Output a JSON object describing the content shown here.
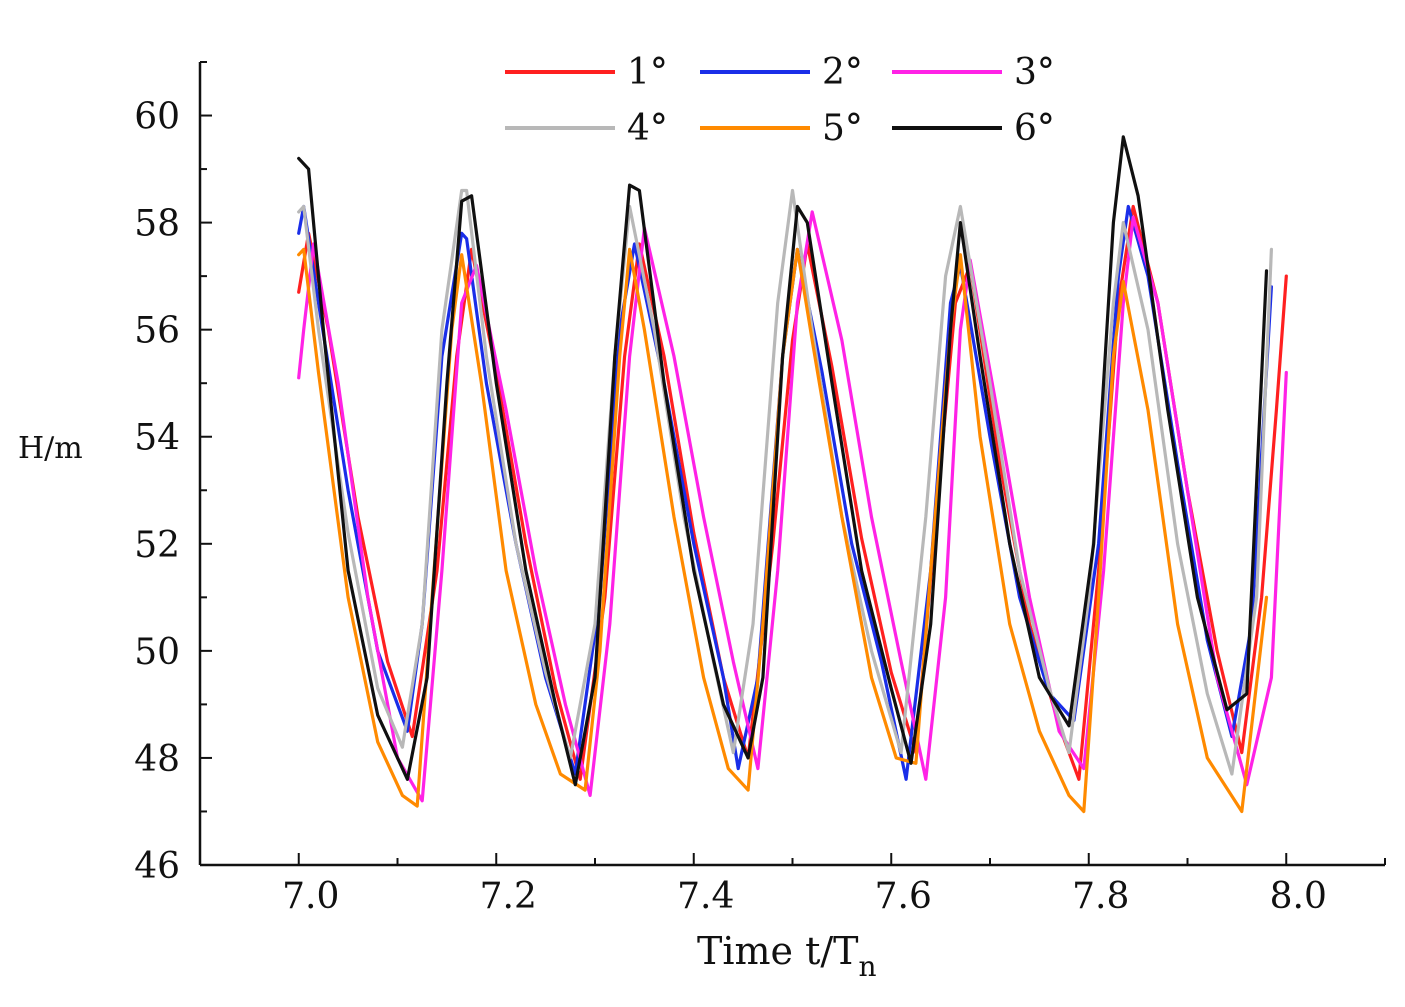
{
  "chart_data": {
    "type": "line",
    "title": "",
    "xlabel": "Time t/T",
    "xlabel_subscript": "n",
    "ylabel": "H/m",
    "xlim": [
      6.9,
      8.1
    ],
    "ylim": [
      46,
      61
    ],
    "xticks": [
      7.0,
      7.2,
      7.4,
      7.6,
      7.8,
      8.0
    ],
    "xtick_labels": [
      "7.0",
      "7.2",
      "7.4",
      "7.6",
      "7.8",
      "8.0"
    ],
    "yticks": [
      46,
      48,
      50,
      52,
      54,
      56,
      58,
      60
    ],
    "ytick_labels": [
      "46",
      "48",
      "50",
      "52",
      "54",
      "56",
      "58",
      "60"
    ],
    "legend_position": "top",
    "series": [
      {
        "name": "1°",
        "color": "#ff2020",
        "x": [
          7.0,
          7.01,
          7.03,
          7.06,
          7.09,
          7.115,
          7.14,
          7.16,
          7.175,
          7.2,
          7.23,
          7.26,
          7.285,
          7.31,
          7.33,
          7.345,
          7.37,
          7.4,
          7.43,
          7.455,
          7.48,
          7.5,
          7.515,
          7.54,
          7.57,
          7.6,
          7.625,
          7.645,
          7.665,
          7.68,
          7.71,
          7.74,
          7.77,
          7.79,
          7.81,
          7.83,
          7.845,
          7.87,
          7.9,
          7.93,
          7.955,
          7.975,
          7.99,
          8.0
        ],
        "y": [
          56.7,
          57.8,
          56.0,
          52.5,
          49.8,
          48.4,
          51.5,
          55.5,
          57.5,
          55.2,
          52.0,
          49.3,
          47.6,
          51.0,
          55.5,
          57.6,
          55.5,
          52.2,
          49.5,
          48.0,
          52.0,
          55.8,
          57.6,
          55.3,
          52.1,
          49.6,
          48.1,
          52.5,
          56.5,
          57.2,
          53.5,
          50.5,
          48.6,
          47.6,
          51.5,
          56.5,
          58.3,
          56.5,
          53.0,
          50.0,
          48.1,
          51.0,
          54.5,
          57.0
        ]
      },
      {
        "name": "2°",
        "color": "#1a2ee8",
        "x": [
          7.0,
          7.005,
          7.02,
          7.05,
          7.08,
          7.11,
          7.125,
          7.145,
          7.165,
          7.17,
          7.19,
          7.22,
          7.25,
          7.28,
          7.305,
          7.325,
          7.34,
          7.37,
          7.4,
          7.43,
          7.445,
          7.465,
          7.49,
          7.505,
          7.53,
          7.56,
          7.59,
          7.615,
          7.64,
          7.66,
          7.67,
          7.7,
          7.73,
          7.76,
          7.785,
          7.81,
          7.83,
          7.84,
          7.86,
          7.89,
          7.92,
          7.945,
          7.965,
          7.985
        ],
        "y": [
          57.8,
          58.3,
          56.5,
          53.0,
          50.0,
          48.5,
          50.5,
          55.5,
          57.8,
          57.7,
          55.0,
          52.0,
          49.5,
          47.7,
          51.0,
          56.0,
          57.6,
          55.0,
          52.0,
          49.5,
          47.8,
          49.5,
          55.5,
          57.5,
          55.2,
          52.0,
          49.8,
          47.6,
          51.5,
          56.5,
          57.2,
          54.0,
          51.0,
          49.2,
          48.7,
          52.0,
          57.0,
          58.3,
          57.0,
          53.5,
          50.2,
          48.4,
          50.5,
          56.8
        ]
      },
      {
        "name": "3°",
        "color": "#ff22e6",
        "x": [
          7.0,
          7.005,
          7.015,
          7.04,
          7.07,
          7.1,
          7.125,
          7.145,
          7.165,
          7.18,
          7.21,
          7.24,
          7.27,
          7.295,
          7.315,
          7.335,
          7.35,
          7.38,
          7.41,
          7.44,
          7.465,
          7.485,
          7.505,
          7.52,
          7.55,
          7.58,
          7.61,
          7.635,
          7.655,
          7.67,
          7.68,
          7.71,
          7.74,
          7.77,
          7.795,
          7.815,
          7.835,
          7.845,
          7.87,
          7.9,
          7.93,
          7.96,
          7.985,
          8.0
        ],
        "y": [
          55.1,
          56.0,
          57.6,
          55.0,
          51.0,
          48.0,
          47.2,
          51.5,
          56.5,
          57.2,
          54.5,
          51.5,
          49.0,
          47.3,
          50.5,
          55.5,
          57.9,
          55.5,
          52.5,
          49.8,
          47.8,
          51.5,
          56.5,
          58.2,
          55.8,
          52.5,
          49.8,
          47.6,
          51.0,
          56.0,
          57.3,
          54.2,
          51.0,
          48.5,
          47.8,
          51.5,
          56.5,
          58.1,
          56.5,
          53.0,
          49.5,
          47.5,
          49.5,
          55.2
        ]
      },
      {
        "name": "4°",
        "color": "#b8b8b8",
        "x": [
          7.0,
          7.005,
          7.02,
          7.05,
          7.08,
          7.105,
          7.125,
          7.145,
          7.165,
          7.17,
          7.19,
          7.22,
          7.25,
          7.275,
          7.3,
          7.32,
          7.335,
          7.36,
          7.39,
          7.42,
          7.44,
          7.46,
          7.485,
          7.5,
          7.52,
          7.55,
          7.58,
          7.61,
          7.635,
          7.655,
          7.67,
          7.7,
          7.73,
          7.76,
          7.78,
          7.8,
          7.825,
          7.835,
          7.86,
          7.89,
          7.92,
          7.945,
          7.97,
          7.985
        ],
        "y": [
          58.2,
          58.3,
          56.0,
          52.2,
          49.3,
          48.2,
          50.5,
          56.0,
          58.6,
          58.6,
          55.5,
          52.0,
          49.6,
          48.0,
          50.5,
          55.5,
          58.3,
          56.0,
          52.5,
          49.8,
          48.1,
          50.5,
          56.5,
          58.6,
          56.0,
          52.5,
          50.0,
          48.1,
          52.5,
          57.0,
          58.3,
          55.0,
          51.5,
          49.3,
          48.1,
          51.0,
          56.5,
          58.0,
          56.0,
          52.0,
          49.2,
          47.7,
          51.0,
          57.5
        ]
      },
      {
        "name": "5°",
        "color": "#ff8a00",
        "x": [
          7.0,
          7.005,
          7.02,
          7.05,
          7.08,
          7.105,
          7.12,
          7.135,
          7.155,
          7.165,
          7.185,
          7.21,
          7.24,
          7.265,
          7.29,
          7.305,
          7.325,
          7.335,
          7.35,
          7.38,
          7.41,
          7.435,
          7.455,
          7.47,
          7.49,
          7.505,
          7.52,
          7.55,
          7.58,
          7.605,
          7.625,
          7.64,
          7.66,
          7.67,
          7.69,
          7.72,
          7.75,
          7.78,
          7.795,
          7.81,
          7.825,
          7.835,
          7.86,
          7.89,
          7.92,
          7.955,
          7.98
        ],
        "y": [
          57.4,
          57.5,
          55.2,
          51.0,
          48.3,
          47.3,
          47.1,
          51.0,
          56.0,
          57.4,
          55.0,
          51.5,
          49.0,
          47.7,
          47.4,
          50.0,
          55.5,
          57.5,
          56.0,
          52.5,
          49.5,
          47.8,
          47.4,
          50.5,
          55.5,
          57.5,
          55.8,
          52.5,
          49.5,
          48.0,
          47.9,
          51.5,
          56.0,
          57.4,
          54.0,
          50.5,
          48.5,
          47.3,
          47.0,
          51.0,
          55.5,
          56.9,
          54.5,
          50.5,
          48.0,
          47.0,
          51.0
        ]
      },
      {
        "name": "6°",
        "color": "#101010",
        "x": [
          7.0,
          7.01,
          7.025,
          7.05,
          7.08,
          7.11,
          7.13,
          7.15,
          7.165,
          7.175,
          7.2,
          7.23,
          7.26,
          7.28,
          7.3,
          7.32,
          7.335,
          7.345,
          7.37,
          7.4,
          7.43,
          7.455,
          7.47,
          7.49,
          7.505,
          7.515,
          7.54,
          7.57,
          7.6,
          7.62,
          7.64,
          7.66,
          7.67,
          7.69,
          7.72,
          7.75,
          7.78,
          7.805,
          7.825,
          7.835,
          7.85,
          7.88,
          7.91,
          7.94,
          7.96,
          7.98
        ],
        "y": [
          59.2,
          59.0,
          56.0,
          51.5,
          48.8,
          47.6,
          49.5,
          55.0,
          58.4,
          58.5,
          55.0,
          51.5,
          49.0,
          47.5,
          49.5,
          55.5,
          58.7,
          58.6,
          55.0,
          51.5,
          49.0,
          48.0,
          49.5,
          55.5,
          58.3,
          58.0,
          55.0,
          51.5,
          49.3,
          47.9,
          50.5,
          56.0,
          58.0,
          55.5,
          52.0,
          49.5,
          48.6,
          52.0,
          58.0,
          59.6,
          58.5,
          54.5,
          51.0,
          48.9,
          49.2,
          57.1
        ]
      }
    ]
  }
}
